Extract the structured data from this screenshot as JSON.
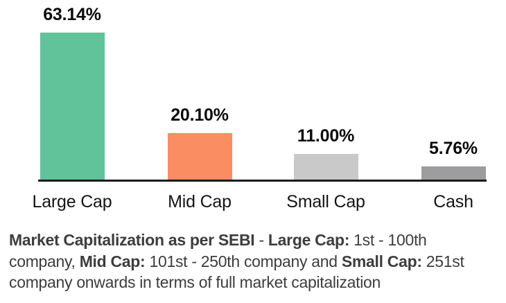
{
  "chart_data": {
    "type": "bar",
    "title": "",
    "categories": [
      "Large Cap",
      "Mid Cap",
      "Small Cap",
      "Cash"
    ],
    "values": [
      63.14,
      20.1,
      11.0,
      5.76
    ],
    "value_labels": [
      "63.14%",
      "20.10%",
      "11.00%",
      "5.76%"
    ],
    "bar_colors": [
      "#61c39a",
      "#fa8d61",
      "#c9c9c9",
      "#9d9d9f"
    ],
    "xlabel": "",
    "ylabel": "",
    "ylim": [
      0,
      66
    ],
    "grid": false,
    "legend": false,
    "axis_line_color": "#1b1b1b",
    "value_label_color": "#0a0a0a",
    "category_label_color": "#141414"
  },
  "footnote": {
    "color": "#3d3d3d",
    "lines": [
      [
        {
          "text": "Market Capitalization as per SEBI",
          "bold": true
        },
        {
          "text": " - ",
          "bold": false
        },
        {
          "text": "Large Cap:",
          "bold": true
        },
        {
          "text": " 1st - 100th",
          "bold": false
        }
      ],
      [
        {
          "text": "company, ",
          "bold": false
        },
        {
          "text": "Mid Cap:",
          "bold": true
        },
        {
          "text": " 101st - 250th company and ",
          "bold": false
        },
        {
          "text": "Small Cap:",
          "bold": true
        },
        {
          "text": " 251st",
          "bold": false
        }
      ],
      [
        {
          "text": "company onwards in terms of full market capitalization",
          "bold": false
        }
      ]
    ]
  }
}
